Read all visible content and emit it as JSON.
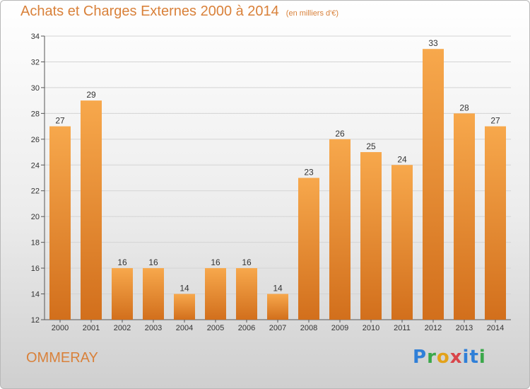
{
  "header": {
    "title": "Achats et Charges Externes 2000 à 2014",
    "subtitle": "(en milliers d'€)"
  },
  "footer": {
    "commune": "OMMERAY",
    "logo_text": "Proxiti"
  },
  "chart_data": {
    "type": "bar",
    "title": "Achats et Charges Externes 2000 à 2014",
    "subtitle": "(en milliers d'€)",
    "xlabel": "",
    "ylabel": "",
    "categories": [
      "2000",
      "2001",
      "2002",
      "2003",
      "2004",
      "2005",
      "2006",
      "2007",
      "2008",
      "2009",
      "2010",
      "2011",
      "2012",
      "2013",
      "2014"
    ],
    "values": [
      27,
      29,
      16,
      16,
      14,
      16,
      16,
      14,
      23,
      26,
      25,
      24,
      33,
      28,
      27
    ],
    "ylim": [
      12,
      34
    ],
    "yticks": [
      12,
      14,
      16,
      18,
      20,
      22,
      24,
      26,
      28,
      30,
      32,
      34
    ],
    "grid": true,
    "colors": {
      "bar_light": "#f7a84c",
      "bar_dark": "#d26f1c",
      "accent": "#d9813a"
    }
  }
}
